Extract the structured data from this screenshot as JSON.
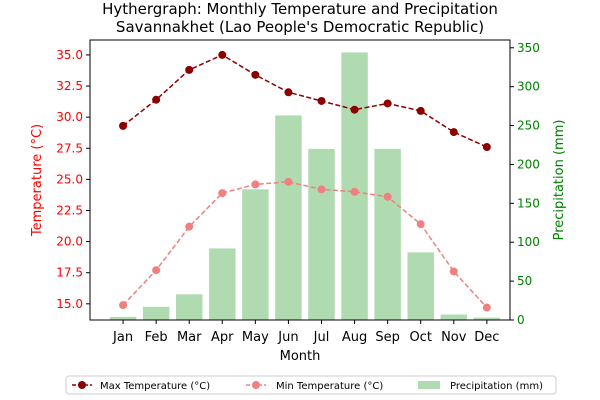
{
  "chart_data": {
    "type": "bar+line",
    "title": "Hythergraph: Monthly Temperature and Precipitation",
    "subtitle": "Savannakhet (Lao People's Democratic Republic)",
    "xlabel": "Month",
    "ylabel_left": "Temperature (°C)",
    "ylabel_right": "Precipitation (mm)",
    "categories": [
      "Jan",
      "Feb",
      "Mar",
      "Apr",
      "May",
      "Jun",
      "Jul",
      "Aug",
      "Sep",
      "Oct",
      "Nov",
      "Dec"
    ],
    "left_axis": {
      "ylim": [
        13.7,
        36.2
      ],
      "ticks": [
        15.0,
        17.5,
        20.0,
        22.5,
        25.0,
        27.5,
        30.0,
        32.5,
        35.0
      ],
      "tick_labels": [
        "15.0",
        "17.5",
        "20.0",
        "22.5",
        "25.0",
        "27.5",
        "30.0",
        "32.5",
        "35.0"
      ],
      "color": "#ff0000"
    },
    "right_axis": {
      "ylim": [
        0,
        360
      ],
      "ticks": [
        0,
        50,
        100,
        150,
        200,
        250,
        300,
        350
      ],
      "tick_labels": [
        "0",
        "50",
        "100",
        "150",
        "200",
        "250",
        "300",
        "350"
      ],
      "color": "#008000"
    },
    "series": [
      {
        "name": "Max Temperature (°C)",
        "kind": "line",
        "axis": "left",
        "color": "#8b0000",
        "values": [
          29.3,
          31.4,
          33.8,
          35.0,
          33.4,
          32.0,
          31.3,
          30.6,
          31.1,
          30.5,
          28.8,
          27.6
        ]
      },
      {
        "name": "Min Temperature (°C)",
        "kind": "line",
        "axis": "left",
        "color": "#f08080",
        "values": [
          14.9,
          17.7,
          21.2,
          23.9,
          24.6,
          24.8,
          24.2,
          24.0,
          23.6,
          21.4,
          17.6,
          14.7
        ]
      },
      {
        "name": "Precipitation (mm)",
        "kind": "bar",
        "axis": "right",
        "color": "#8fcc8f",
        "values": [
          4,
          17,
          33,
          92,
          168,
          263,
          220,
          344,
          220,
          87,
          7,
          3
        ]
      }
    ],
    "legend_position": "bottom-center",
    "grid": false
  }
}
